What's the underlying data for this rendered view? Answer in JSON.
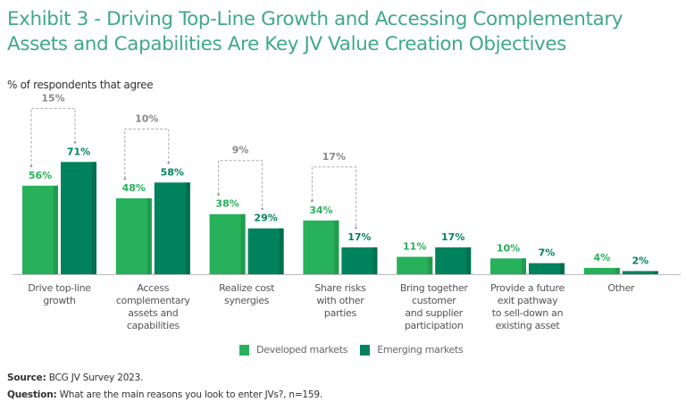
{
  "title": "Exhibit 3 - Driving Top-Line Growth and Accessing Complementary Assets and Capabilities Are Key JV Value Creation Objectives",
  "subtitle": "% of respondents that agree",
  "legend": [
    {
      "label": "Developed markets",
      "color": "#27b15a"
    },
    {
      "label": "Emerging markets",
      "color": "#00835d"
    }
  ],
  "footer": {
    "source_label": "Source:",
    "source_text": " BCG JV Survey 2023.",
    "question_label": "Question:",
    "question_text": " What are the main reasons you look to enter JVs?, n=159."
  },
  "chart_data": {
    "type": "bar",
    "title": "Exhibit 3 - Driving Top-Line Growth and Accessing Complementary Assets and Capabilities Are Key JV Value Creation Objectives",
    "ylabel": "% of respondents that agree",
    "xlabel": "",
    "ylim": [
      0,
      80
    ],
    "grid": false,
    "legend_position": "bottom-center",
    "categories": [
      [
        "Drive top-line",
        "growth"
      ],
      [
        "Access",
        "complementary",
        "assets and",
        "capabilities"
      ],
      [
        "Realize cost",
        "synergies"
      ],
      [
        "Share risks",
        "with other",
        "parties"
      ],
      [
        "Bring together",
        "customer",
        "and supplier",
        "participation"
      ],
      [
        "Provide a future",
        "exit pathway",
        "to sell-down an",
        "existing asset"
      ],
      [
        "Other"
      ]
    ],
    "series": [
      {
        "name": "Developed markets",
        "color": "#27b15a",
        "values": [
          56,
          48,
          38,
          34,
          11,
          10,
          4
        ],
        "labels": [
          "56%",
          "48%",
          "38%",
          "34%",
          "11%",
          "10%",
          "4%"
        ]
      },
      {
        "name": "Emerging markets",
        "color": "#00835d",
        "values": [
          71,
          58,
          29,
          17,
          17,
          7,
          2
        ],
        "labels": [
          "71%",
          "58%",
          "29%",
          "17%",
          "17%",
          "7%",
          "2%"
        ]
      }
    ],
    "annotations": [
      {
        "category_index": 0,
        "label": "15%"
      },
      {
        "category_index": 1,
        "label": "10%"
      },
      {
        "category_index": 2,
        "label": "9%"
      },
      {
        "category_index": 3,
        "label": "17%"
      }
    ]
  }
}
